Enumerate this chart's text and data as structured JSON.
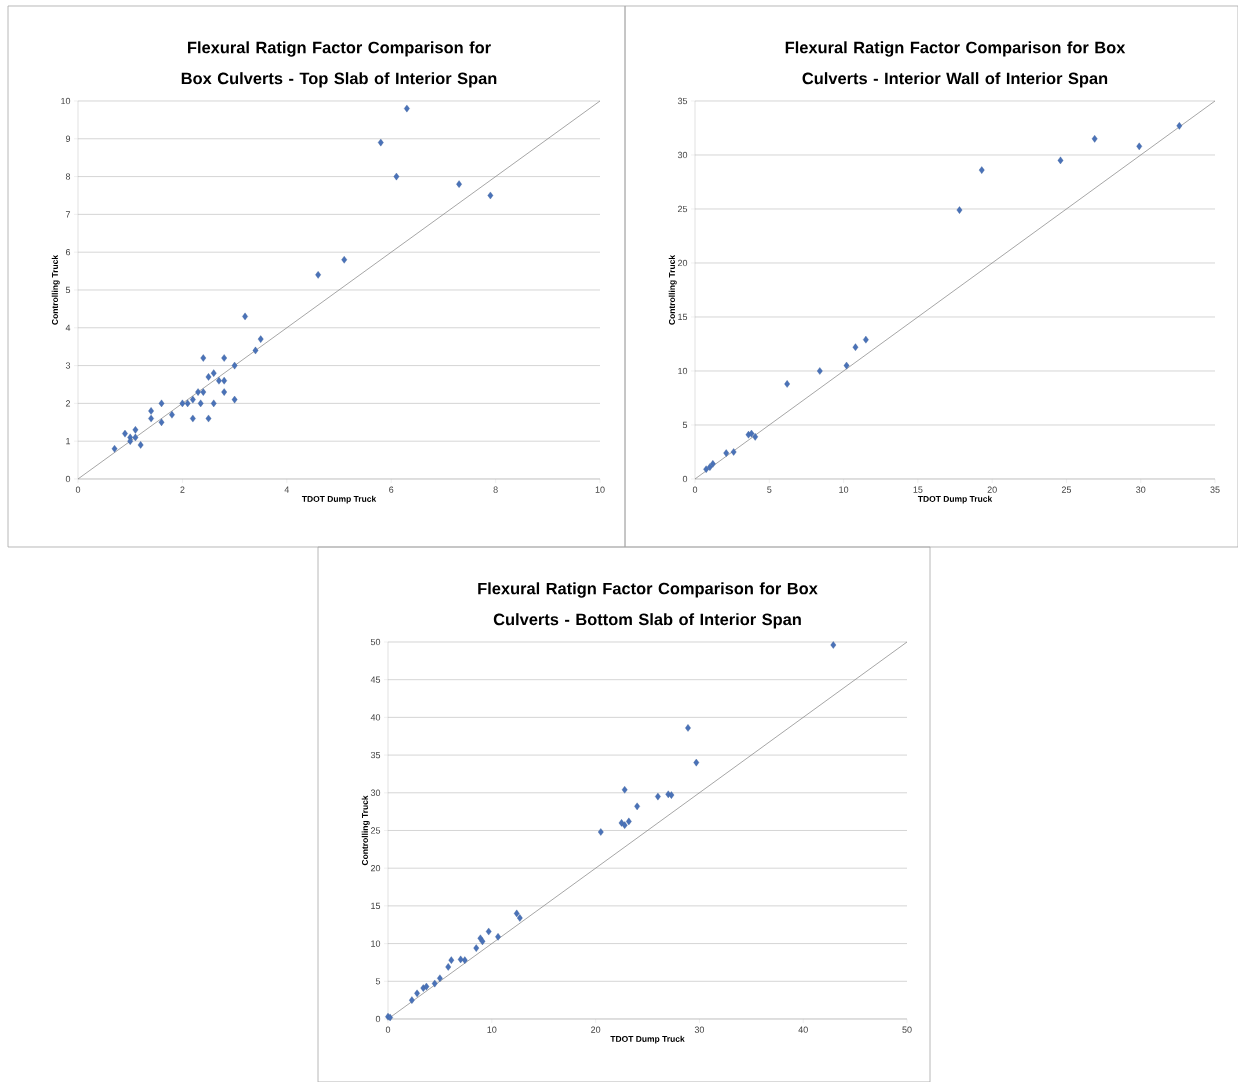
{
  "chart_data": [
    {
      "type": "scatter",
      "title": "Flexural Ratign Factor Comparison for Box Culverts - Top Slab of Interior Span",
      "xlabel": "TDOT Dump Truck",
      "ylabel": "Controlling Truck",
      "xlim": [
        0,
        10
      ],
      "ylim": [
        0,
        10
      ],
      "xticks": [
        0,
        2,
        4,
        6,
        8,
        10
      ],
      "yticks": [
        0,
        1,
        2,
        3,
        4,
        5,
        6,
        7,
        8,
        9,
        10
      ],
      "grid": "y",
      "marker": "diamond",
      "series": [
        {
          "type": "scatter",
          "color": "#4a72b8",
          "x": [
            6.3,
            5.8,
            6.1,
            7.3,
            7.9,
            5.1,
            4.6,
            3.2,
            3.5,
            3.4,
            2.4,
            2.8,
            3.0,
            2.6,
            2.5,
            2.7,
            2.8,
            2.4,
            2.3,
            2.8,
            3.0,
            2.0,
            1.6,
            2.2,
            2.1,
            2.35,
            2.6,
            1.8,
            1.4,
            1.4,
            1.6,
            2.2,
            2.5,
            0.9,
            1.0,
            1.1,
            1.0,
            1.2,
            0.7,
            1.1
          ],
          "values": [
            9.8,
            8.9,
            8.0,
            7.8,
            7.5,
            5.8,
            5.4,
            4.3,
            3.7,
            3.4,
            3.2,
            3.2,
            3.0,
            2.8,
            2.7,
            2.6,
            2.6,
            2.3,
            2.3,
            2.3,
            2.1,
            2.0,
            2.0,
            2.1,
            2.0,
            2.0,
            2.0,
            1.7,
            1.8,
            1.6,
            1.5,
            1.6,
            1.6,
            1.2,
            1.1,
            1.3,
            1.0,
            0.9,
            0.8,
            1.1
          ]
        },
        {
          "type": "line",
          "marker": "none",
          "color": "#808080",
          "x": [
            0,
            10
          ],
          "values": [
            0,
            10
          ]
        }
      ]
    },
    {
      "type": "scatter",
      "title": "Flexural Ratign Factor Comparison for Box Culverts - Interior Wall of Interior Span",
      "xlabel": "TDOT Dump Truck",
      "ylabel": "Controlling Truck",
      "xlim": [
        0,
        35
      ],
      "ylim": [
        0,
        35
      ],
      "xticks": [
        0,
        5,
        10,
        15,
        20,
        25,
        30,
        35
      ],
      "yticks": [
        0,
        5,
        10,
        15,
        20,
        25,
        30,
        35
      ],
      "grid": "y",
      "marker": "diamond",
      "series": [
        {
          "type": "scatter",
          "color": "#4a72b8",
          "x": [
            32.6,
            26.9,
            29.9,
            24.6,
            19.3,
            17.8,
            11.5,
            10.8,
            10.2,
            8.4,
            6.2,
            3.6,
            4.05,
            3.8,
            2.6,
            2.1,
            1.2,
            0.75,
            1.0
          ],
          "values": [
            32.7,
            31.5,
            30.8,
            29.5,
            28.6,
            24.9,
            12.9,
            12.2,
            10.5,
            10.0,
            8.8,
            4.1,
            3.9,
            4.2,
            2.5,
            2.4,
            1.4,
            0.9,
            1.1
          ]
        },
        {
          "type": "line",
          "marker": "none",
          "color": "#808080",
          "x": [
            0,
            35
          ],
          "values": [
            0,
            35
          ]
        }
      ]
    },
    {
      "type": "scatter",
      "title": "Flexural Ratign Factor Comparison for Box Culverts - Bottom Slab of Interior Span",
      "xlabel": "TDOT Dump Truck",
      "ylabel": "Controlling Truck",
      "xlim": [
        0,
        50
      ],
      "ylim": [
        0,
        50
      ],
      "xticks": [
        0,
        10,
        20,
        30,
        40,
        50
      ],
      "yticks": [
        0,
        5,
        10,
        15,
        20,
        25,
        30,
        35,
        40,
        45,
        50
      ],
      "grid": "y",
      "marker": "diamond",
      "series": [
        {
          "type": "scatter",
          "color": "#4a72b8",
          "x": [
            42.9,
            28.9,
            29.7,
            22.8,
            26.0,
            27.0,
            27.3,
            24.0,
            22.5,
            23.2,
            22.8,
            20.5,
            12.4,
            12.7,
            9.7,
            8.9,
            10.6,
            8.5,
            9.1,
            7.4,
            6.1,
            5.8,
            7.0,
            5.0,
            4.5,
            3.4,
            2.8,
            2.3,
            3.7,
            0.0,
            0.2
          ],
          "values": [
            49.6,
            38.6,
            34.0,
            30.4,
            29.5,
            29.8,
            29.7,
            28.2,
            26.0,
            26.2,
            25.7,
            24.8,
            14.0,
            13.4,
            11.6,
            10.7,
            10.9,
            9.4,
            10.3,
            7.8,
            7.8,
            6.9,
            7.9,
            5.4,
            4.7,
            4.1,
            3.4,
            2.5,
            4.3,
            0.3,
            0.2
          ]
        },
        {
          "type": "line",
          "marker": "none",
          "color": "#808080",
          "x": [
            0,
            50
          ],
          "values": [
            0,
            50
          ]
        }
      ]
    }
  ]
}
